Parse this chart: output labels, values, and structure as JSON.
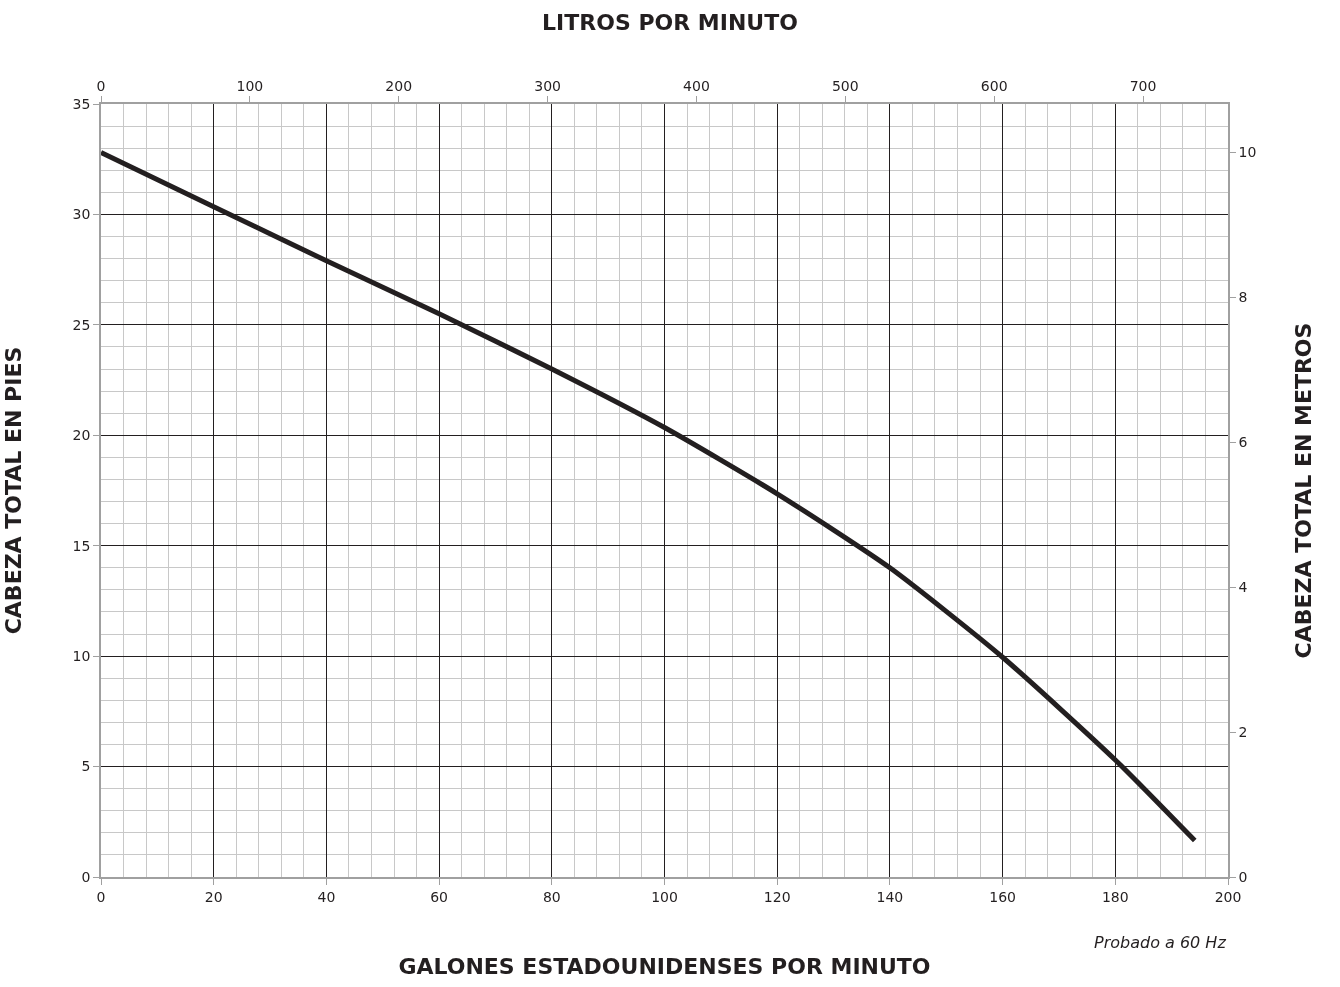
{
  "chart_data": {
    "type": "line",
    "title": "LITROS POR MINUTO",
    "xlabel": "GALONES ESTADOUNIDENSES POR MINUTO",
    "ylabel": "CABEZA TOTAL EN PIES",
    "y2label": "CABEZA TOTAL EN METROS",
    "series": [
      {
        "color": "#231f20",
        "x": [
          0,
          20,
          40,
          60,
          80,
          100,
          120,
          140,
          160,
          180,
          194.1
        ],
        "values": [
          32.8,
          30.35,
          27.9,
          25.5,
          23.0,
          20.35,
          17.35,
          14.0,
          9.95,
          5.3,
          1.65
        ]
      }
    ],
    "xlim": [
      0,
      200
    ],
    "xticks": [
      0,
      20,
      40,
      60,
      80,
      100,
      120,
      140,
      160,
      180,
      200
    ],
    "ylim": [
      0,
      35
    ],
    "yticks": [
      0,
      5,
      10,
      15,
      20,
      25,
      30,
      35
    ],
    "x2lim": [
      0,
      757.08
    ],
    "x2ticks": [
      0,
      100,
      200,
      300,
      400,
      500,
      600,
      700
    ],
    "y2lim": [
      0,
      10.668
    ],
    "y2ticks": [
      0,
      2,
      4,
      6,
      8,
      10
    ],
    "grid": true,
    "marker": "none",
    "line_style": "solid",
    "annotations": [
      "Probado a 60 Hz"
    ]
  }
}
